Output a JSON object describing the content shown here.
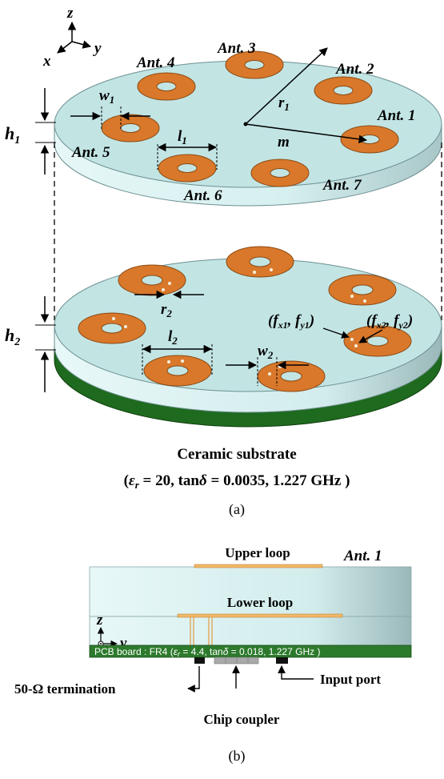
{
  "axes_a": {
    "z": "z",
    "y": "y",
    "x": "x"
  },
  "antennas": {
    "ant1": "Ant. 1",
    "ant2": "Ant. 2",
    "ant3": "Ant. 3",
    "ant4": "Ant. 4",
    "ant5": "Ant. 5",
    "ant6": "Ant. 6",
    "ant7": "Ant. 7"
  },
  "dims": {
    "w1": "w",
    "w1_sub": "1",
    "l1": "l",
    "l1_sub": "1",
    "r1": "r",
    "r1_sub": "1",
    "m": "m",
    "h1": "h",
    "h1_sub": "1",
    "h2": "h",
    "h2_sub": "2",
    "r2": "r",
    "r2_sub": "2",
    "l2": "l",
    "l2_sub": "2",
    "w2": "w",
    "w2_sub": "2"
  },
  "feeds": {
    "f1": "(f",
    "f1_sub1": "x1",
    "f1_mid": ", f",
    "f1_sub2": "y1",
    "f1_end": ")",
    "f2": "(f",
    "f2_sub1": "x2",
    "f2_mid": ", f",
    "f2_sub2": "y2",
    "f2_end": ")"
  },
  "substrate": {
    "title": "Ceramic substrate",
    "params_open": "(",
    "eps": "ε",
    "eps_sub": "r",
    "params_mid": " = 20, tan",
    "delta": "δ",
    "params_end": " = 0.0035, 1.227 GHz )"
  },
  "caption_a": "(a)",
  "panel_b": {
    "upper_loop": "Upper loop",
    "lower_loop": "Lower loop",
    "ant": "Ant. 1",
    "axis_z": "z",
    "axis_y": "y",
    "pcb_label_1": "PCB board : FR4 (",
    "pcb_eps": "ε",
    "pcb_eps_sub": "r",
    "pcb_label_2": " = 4.4, tan",
    "pcb_delta": "δ",
    "pcb_label_3": " = 0.018, 1.227 GHz )",
    "termination": "50-Ω termination",
    "input_port": "Input port",
    "chip_coupler": "Chip coupler"
  },
  "caption_b": "(b)",
  "colors": {
    "ceramic_top": "#c2e5e4",
    "ceramic_side": "#d8f1f1",
    "ring": "#d9782a",
    "ring_edge": "#8a4a15",
    "pcb": "#2d7a2d",
    "loop": "#f2b866"
  }
}
